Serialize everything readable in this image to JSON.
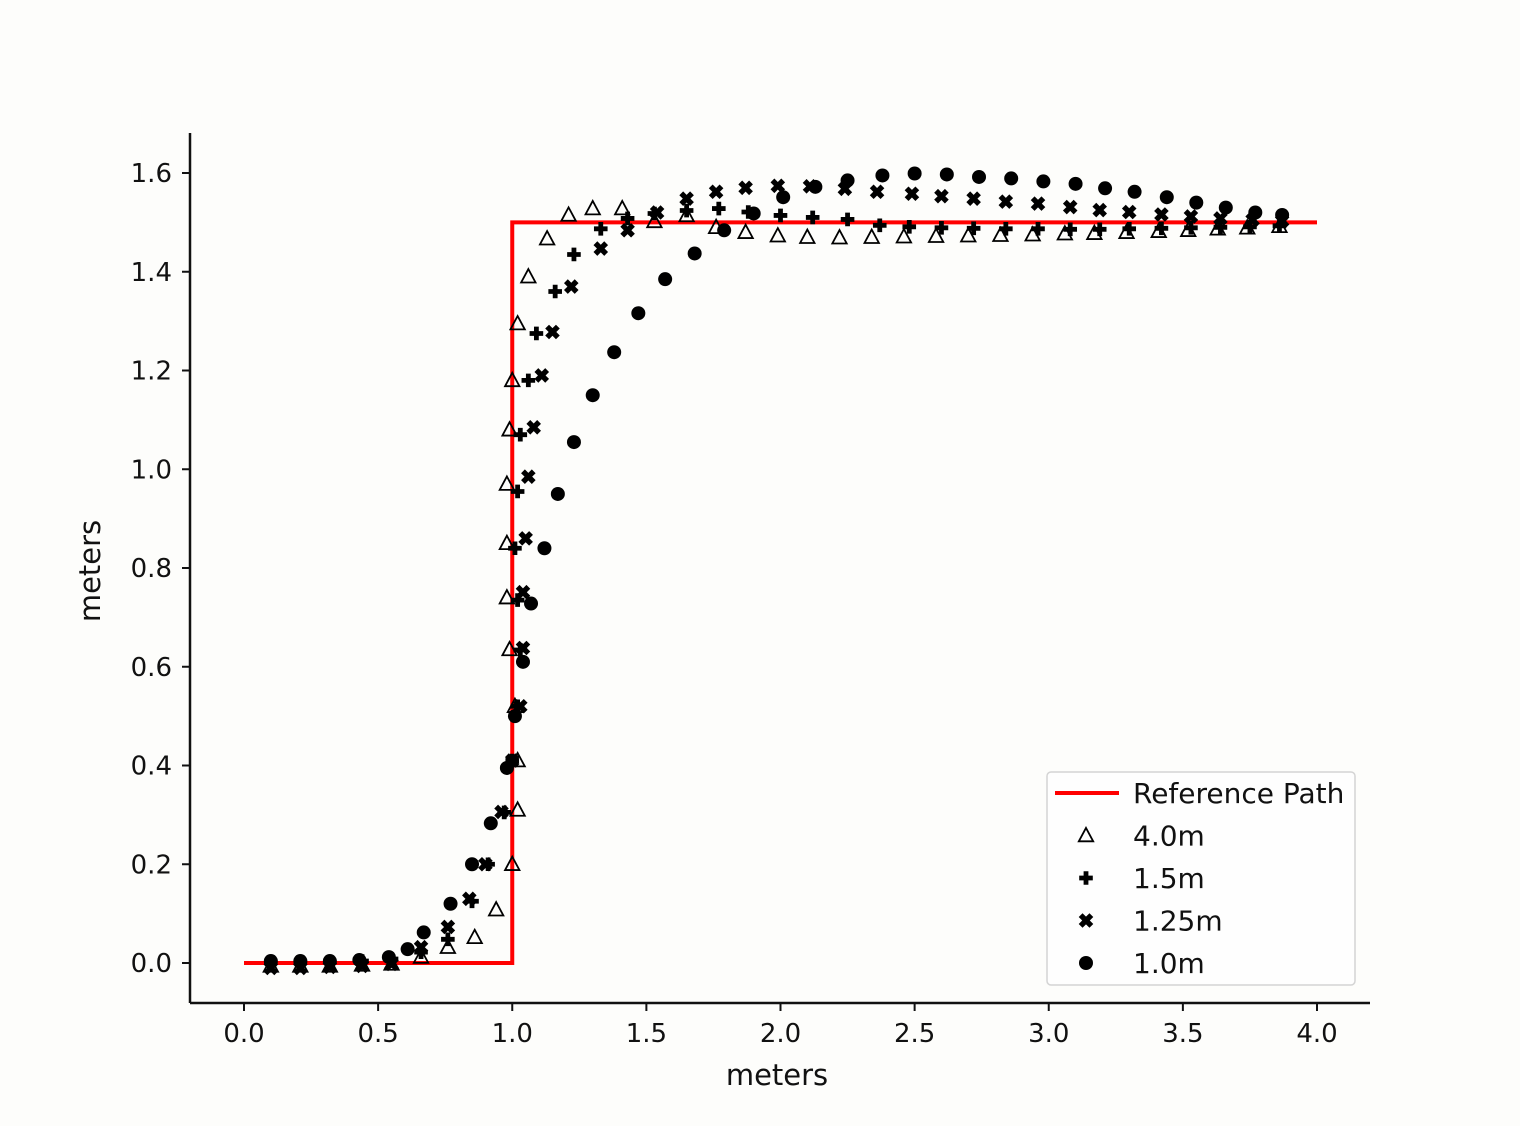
{
  "figure": {
    "background": "#fdfdfb",
    "title": ""
  },
  "chart_data": {
    "type": "scatter",
    "title": "",
    "xlabel": "meters",
    "ylabel": "meters",
    "xlim": [
      -0.2,
      4.2
    ],
    "ylim": [
      -0.08,
      1.68
    ],
    "grid": false,
    "legend_position": "lower right",
    "x_ticks": [
      0.0,
      0.5,
      1.0,
      1.5,
      2.0,
      2.5,
      3.0,
      3.5,
      4.0
    ],
    "x_tick_labels": [
      "0.0",
      "0.5",
      "1.0",
      "1.5",
      "2.0",
      "2.5",
      "3.0",
      "3.5",
      "4.0"
    ],
    "y_ticks": [
      0.0,
      0.2,
      0.4,
      0.6,
      0.8,
      1.0,
      1.2,
      1.4,
      1.6
    ],
    "y_tick_labels": [
      "0.0",
      "0.2",
      "0.4",
      "0.6",
      "0.8",
      "1.0",
      "1.2",
      "1.4",
      "1.6"
    ],
    "reference_path": {
      "label": "Reference Path",
      "color": "#ff0000",
      "line_width": 4,
      "points": [
        [
          0.0,
          0.0
        ],
        [
          1.0,
          0.0
        ],
        [
          1.0,
          1.5
        ],
        [
          4.0,
          1.5
        ]
      ]
    },
    "series": [
      {
        "name": "4.0m",
        "marker": "triangle-open",
        "color": "#000000",
        "points": [
          [
            0.1,
            -0.006
          ],
          [
            0.21,
            -0.006
          ],
          [
            0.32,
            -0.006
          ],
          [
            0.44,
            -0.004
          ],
          [
            0.55,
            -0.002
          ],
          [
            0.66,
            0.012
          ],
          [
            0.76,
            0.032
          ],
          [
            0.86,
            0.052
          ],
          [
            0.94,
            0.108
          ],
          [
            1.0,
            0.2
          ],
          [
            1.02,
            0.31
          ],
          [
            1.02,
            0.41
          ],
          [
            1.01,
            0.52
          ],
          [
            0.99,
            0.635
          ],
          [
            0.98,
            0.74
          ],
          [
            0.98,
            0.85
          ],
          [
            0.98,
            0.97
          ],
          [
            0.99,
            1.08
          ],
          [
            1.0,
            1.18
          ],
          [
            1.02,
            1.295
          ],
          [
            1.06,
            1.39
          ],
          [
            1.13,
            1.467
          ],
          [
            1.21,
            1.515
          ],
          [
            1.3,
            1.528
          ],
          [
            1.41,
            1.528
          ],
          [
            1.53,
            1.502
          ],
          [
            1.65,
            1.514
          ],
          [
            1.76,
            1.49
          ],
          [
            1.87,
            1.48
          ],
          [
            1.99,
            1.473
          ],
          [
            2.1,
            1.47
          ],
          [
            2.22,
            1.469
          ],
          [
            2.34,
            1.47
          ],
          [
            2.46,
            1.471
          ],
          [
            2.58,
            1.472
          ],
          [
            2.7,
            1.473
          ],
          [
            2.82,
            1.474
          ],
          [
            2.94,
            1.475
          ],
          [
            3.06,
            1.477
          ],
          [
            3.17,
            1.478
          ],
          [
            3.29,
            1.48
          ],
          [
            3.41,
            1.482
          ],
          [
            3.52,
            1.484
          ],
          [
            3.63,
            1.487
          ],
          [
            3.74,
            1.489
          ],
          [
            3.86,
            1.492
          ]
        ]
      },
      {
        "name": "1.5m",
        "marker": "plus-filled",
        "color": "#000000",
        "points": [
          [
            0.1,
            0.002
          ],
          [
            0.21,
            0.002
          ],
          [
            0.32,
            0.002
          ],
          [
            0.44,
            0.004
          ],
          [
            0.55,
            0.008
          ],
          [
            0.66,
            0.022
          ],
          [
            0.76,
            0.048
          ],
          [
            0.85,
            0.125
          ],
          [
            0.91,
            0.2
          ],
          [
            0.97,
            0.305
          ],
          [
            1.0,
            0.41
          ],
          [
            1.02,
            0.52
          ],
          [
            1.03,
            0.634
          ],
          [
            1.02,
            0.735
          ],
          [
            1.01,
            0.84
          ],
          [
            1.02,
            0.955
          ],
          [
            1.03,
            1.07
          ],
          [
            1.06,
            1.18
          ],
          [
            1.09,
            1.275
          ],
          [
            1.16,
            1.36
          ],
          [
            1.23,
            1.435
          ],
          [
            1.33,
            1.487
          ],
          [
            1.43,
            1.508
          ],
          [
            1.53,
            1.518
          ],
          [
            1.65,
            1.524
          ],
          [
            1.77,
            1.528
          ],
          [
            1.88,
            1.521
          ],
          [
            2.0,
            1.514
          ],
          [
            2.12,
            1.51
          ],
          [
            2.25,
            1.506
          ],
          [
            2.37,
            1.494
          ],
          [
            2.48,
            1.491
          ],
          [
            2.6,
            1.489
          ],
          [
            2.72,
            1.488
          ],
          [
            2.84,
            1.487
          ],
          [
            2.96,
            1.487
          ],
          [
            3.08,
            1.486
          ],
          [
            3.19,
            1.486
          ],
          [
            3.3,
            1.487
          ],
          [
            3.42,
            1.488
          ],
          [
            3.53,
            1.489
          ],
          [
            3.64,
            1.49
          ],
          [
            3.75,
            1.491
          ],
          [
            3.86,
            1.493
          ]
        ]
      },
      {
        "name": "1.25m",
        "marker": "x-filled",
        "color": "#000000",
        "points": [
          [
            0.1,
            -0.01
          ],
          [
            0.21,
            -0.01
          ],
          [
            0.32,
            -0.008
          ],
          [
            0.44,
            -0.006
          ],
          [
            0.55,
            -0.002
          ],
          [
            0.66,
            0.032
          ],
          [
            0.76,
            0.073
          ],
          [
            0.84,
            0.13
          ],
          [
            0.9,
            0.2
          ],
          [
            0.96,
            0.306
          ],
          [
            1.0,
            0.41
          ],
          [
            1.03,
            0.52
          ],
          [
            1.04,
            0.638
          ],
          [
            1.04,
            0.751
          ],
          [
            1.05,
            0.86
          ],
          [
            1.06,
            0.985
          ],
          [
            1.08,
            1.085
          ],
          [
            1.11,
            1.19
          ],
          [
            1.15,
            1.278
          ],
          [
            1.22,
            1.37
          ],
          [
            1.33,
            1.447
          ],
          [
            1.43,
            1.484
          ],
          [
            1.54,
            1.52
          ],
          [
            1.65,
            1.548
          ],
          [
            1.76,
            1.562
          ],
          [
            1.87,
            1.57
          ],
          [
            1.99,
            1.574
          ],
          [
            2.11,
            1.573
          ],
          [
            2.24,
            1.568
          ],
          [
            2.36,
            1.562
          ],
          [
            2.49,
            1.558
          ],
          [
            2.6,
            1.553
          ],
          [
            2.72,
            1.548
          ],
          [
            2.84,
            1.542
          ],
          [
            2.96,
            1.538
          ],
          [
            3.08,
            1.531
          ],
          [
            3.19,
            1.525
          ],
          [
            3.3,
            1.521
          ],
          [
            3.42,
            1.516
          ],
          [
            3.53,
            1.512
          ],
          [
            3.64,
            1.508
          ],
          [
            3.76,
            1.505
          ],
          [
            3.87,
            1.503
          ]
        ]
      },
      {
        "name": "1.0m",
        "marker": "circle-filled",
        "color": "#000000",
        "points": [
          [
            0.1,
            0.004
          ],
          [
            0.21,
            0.004
          ],
          [
            0.32,
            0.004
          ],
          [
            0.43,
            0.006
          ],
          [
            0.54,
            0.012
          ],
          [
            0.61,
            0.028
          ],
          [
            0.67,
            0.062
          ],
          [
            0.77,
            0.12
          ],
          [
            0.85,
            0.2
          ],
          [
            0.92,
            0.283
          ],
          [
            0.98,
            0.395
          ],
          [
            1.01,
            0.5
          ],
          [
            1.04,
            0.61
          ],
          [
            1.07,
            0.728
          ],
          [
            1.12,
            0.84
          ],
          [
            1.17,
            0.95
          ],
          [
            1.23,
            1.055
          ],
          [
            1.3,
            1.15
          ],
          [
            1.38,
            1.237
          ],
          [
            1.47,
            1.316
          ],
          [
            1.57,
            1.385
          ],
          [
            1.68,
            1.437
          ],
          [
            1.79,
            1.484
          ],
          [
            1.9,
            1.518
          ],
          [
            2.01,
            1.551
          ],
          [
            2.13,
            1.572
          ],
          [
            2.25,
            1.585
          ],
          [
            2.38,
            1.595
          ],
          [
            2.5,
            1.599
          ],
          [
            2.62,
            1.597
          ],
          [
            2.74,
            1.592
          ],
          [
            2.86,
            1.589
          ],
          [
            2.98,
            1.583
          ],
          [
            3.1,
            1.578
          ],
          [
            3.21,
            1.569
          ],
          [
            3.32,
            1.562
          ],
          [
            3.44,
            1.551
          ],
          [
            3.55,
            1.54
          ],
          [
            3.66,
            1.53
          ],
          [
            3.77,
            1.52
          ],
          [
            3.87,
            1.515
          ]
        ]
      }
    ]
  },
  "legend": {
    "entries": [
      {
        "label": "Reference Path",
        "marker": "line",
        "color": "#ff0000"
      },
      {
        "label": "4.0m",
        "marker": "triangle-open",
        "color": "#000000"
      },
      {
        "label": "1.5m",
        "marker": "plus-filled",
        "color": "#000000"
      },
      {
        "label": "1.25m",
        "marker": "x-filled",
        "color": "#000000"
      },
      {
        "label": "1.0m",
        "marker": "circle-filled",
        "color": "#000000"
      }
    ]
  }
}
